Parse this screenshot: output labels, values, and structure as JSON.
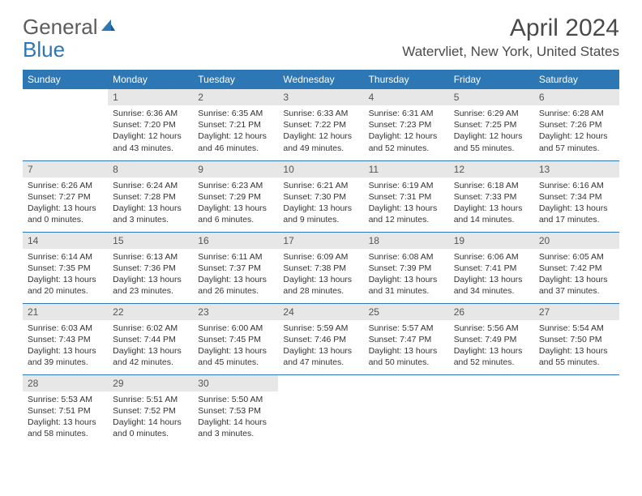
{
  "logo": {
    "text1": "General",
    "text2": "Blue"
  },
  "title": "April 2024",
  "location": "Watervliet, New York, United States",
  "colors": {
    "accent": "#2d77b5",
    "header_text": "#4a4a4a",
    "daynum_bg": "#e7e7e7"
  },
  "dayheads": [
    "Sunday",
    "Monday",
    "Tuesday",
    "Wednesday",
    "Thursday",
    "Friday",
    "Saturday"
  ],
  "weeks": [
    [
      {
        "n": "",
        "sunrise": "",
        "sunset": "",
        "daylight": ""
      },
      {
        "n": "1",
        "sunrise": "Sunrise: 6:36 AM",
        "sunset": "Sunset: 7:20 PM",
        "daylight": "Daylight: 12 hours and 43 minutes."
      },
      {
        "n": "2",
        "sunrise": "Sunrise: 6:35 AM",
        "sunset": "Sunset: 7:21 PM",
        "daylight": "Daylight: 12 hours and 46 minutes."
      },
      {
        "n": "3",
        "sunrise": "Sunrise: 6:33 AM",
        "sunset": "Sunset: 7:22 PM",
        "daylight": "Daylight: 12 hours and 49 minutes."
      },
      {
        "n": "4",
        "sunrise": "Sunrise: 6:31 AM",
        "sunset": "Sunset: 7:23 PM",
        "daylight": "Daylight: 12 hours and 52 minutes."
      },
      {
        "n": "5",
        "sunrise": "Sunrise: 6:29 AM",
        "sunset": "Sunset: 7:25 PM",
        "daylight": "Daylight: 12 hours and 55 minutes."
      },
      {
        "n": "6",
        "sunrise": "Sunrise: 6:28 AM",
        "sunset": "Sunset: 7:26 PM",
        "daylight": "Daylight: 12 hours and 57 minutes."
      }
    ],
    [
      {
        "n": "7",
        "sunrise": "Sunrise: 6:26 AM",
        "sunset": "Sunset: 7:27 PM",
        "daylight": "Daylight: 13 hours and 0 minutes."
      },
      {
        "n": "8",
        "sunrise": "Sunrise: 6:24 AM",
        "sunset": "Sunset: 7:28 PM",
        "daylight": "Daylight: 13 hours and 3 minutes."
      },
      {
        "n": "9",
        "sunrise": "Sunrise: 6:23 AM",
        "sunset": "Sunset: 7:29 PM",
        "daylight": "Daylight: 13 hours and 6 minutes."
      },
      {
        "n": "10",
        "sunrise": "Sunrise: 6:21 AM",
        "sunset": "Sunset: 7:30 PM",
        "daylight": "Daylight: 13 hours and 9 minutes."
      },
      {
        "n": "11",
        "sunrise": "Sunrise: 6:19 AM",
        "sunset": "Sunset: 7:31 PM",
        "daylight": "Daylight: 13 hours and 12 minutes."
      },
      {
        "n": "12",
        "sunrise": "Sunrise: 6:18 AM",
        "sunset": "Sunset: 7:33 PM",
        "daylight": "Daylight: 13 hours and 14 minutes."
      },
      {
        "n": "13",
        "sunrise": "Sunrise: 6:16 AM",
        "sunset": "Sunset: 7:34 PM",
        "daylight": "Daylight: 13 hours and 17 minutes."
      }
    ],
    [
      {
        "n": "14",
        "sunrise": "Sunrise: 6:14 AM",
        "sunset": "Sunset: 7:35 PM",
        "daylight": "Daylight: 13 hours and 20 minutes."
      },
      {
        "n": "15",
        "sunrise": "Sunrise: 6:13 AM",
        "sunset": "Sunset: 7:36 PM",
        "daylight": "Daylight: 13 hours and 23 minutes."
      },
      {
        "n": "16",
        "sunrise": "Sunrise: 6:11 AM",
        "sunset": "Sunset: 7:37 PM",
        "daylight": "Daylight: 13 hours and 26 minutes."
      },
      {
        "n": "17",
        "sunrise": "Sunrise: 6:09 AM",
        "sunset": "Sunset: 7:38 PM",
        "daylight": "Daylight: 13 hours and 28 minutes."
      },
      {
        "n": "18",
        "sunrise": "Sunrise: 6:08 AM",
        "sunset": "Sunset: 7:39 PM",
        "daylight": "Daylight: 13 hours and 31 minutes."
      },
      {
        "n": "19",
        "sunrise": "Sunrise: 6:06 AM",
        "sunset": "Sunset: 7:41 PM",
        "daylight": "Daylight: 13 hours and 34 minutes."
      },
      {
        "n": "20",
        "sunrise": "Sunrise: 6:05 AM",
        "sunset": "Sunset: 7:42 PM",
        "daylight": "Daylight: 13 hours and 37 minutes."
      }
    ],
    [
      {
        "n": "21",
        "sunrise": "Sunrise: 6:03 AM",
        "sunset": "Sunset: 7:43 PM",
        "daylight": "Daylight: 13 hours and 39 minutes."
      },
      {
        "n": "22",
        "sunrise": "Sunrise: 6:02 AM",
        "sunset": "Sunset: 7:44 PM",
        "daylight": "Daylight: 13 hours and 42 minutes."
      },
      {
        "n": "23",
        "sunrise": "Sunrise: 6:00 AM",
        "sunset": "Sunset: 7:45 PM",
        "daylight": "Daylight: 13 hours and 45 minutes."
      },
      {
        "n": "24",
        "sunrise": "Sunrise: 5:59 AM",
        "sunset": "Sunset: 7:46 PM",
        "daylight": "Daylight: 13 hours and 47 minutes."
      },
      {
        "n": "25",
        "sunrise": "Sunrise: 5:57 AM",
        "sunset": "Sunset: 7:47 PM",
        "daylight": "Daylight: 13 hours and 50 minutes."
      },
      {
        "n": "26",
        "sunrise": "Sunrise: 5:56 AM",
        "sunset": "Sunset: 7:49 PM",
        "daylight": "Daylight: 13 hours and 52 minutes."
      },
      {
        "n": "27",
        "sunrise": "Sunrise: 5:54 AM",
        "sunset": "Sunset: 7:50 PM",
        "daylight": "Daylight: 13 hours and 55 minutes."
      }
    ],
    [
      {
        "n": "28",
        "sunrise": "Sunrise: 5:53 AM",
        "sunset": "Sunset: 7:51 PM",
        "daylight": "Daylight: 13 hours and 58 minutes."
      },
      {
        "n": "29",
        "sunrise": "Sunrise: 5:51 AM",
        "sunset": "Sunset: 7:52 PM",
        "daylight": "Daylight: 14 hours and 0 minutes."
      },
      {
        "n": "30",
        "sunrise": "Sunrise: 5:50 AM",
        "sunset": "Sunset: 7:53 PM",
        "daylight": "Daylight: 14 hours and 3 minutes."
      },
      {
        "n": "",
        "sunrise": "",
        "sunset": "",
        "daylight": ""
      },
      {
        "n": "",
        "sunrise": "",
        "sunset": "",
        "daylight": ""
      },
      {
        "n": "",
        "sunrise": "",
        "sunset": "",
        "daylight": ""
      },
      {
        "n": "",
        "sunrise": "",
        "sunset": "",
        "daylight": ""
      }
    ]
  ]
}
